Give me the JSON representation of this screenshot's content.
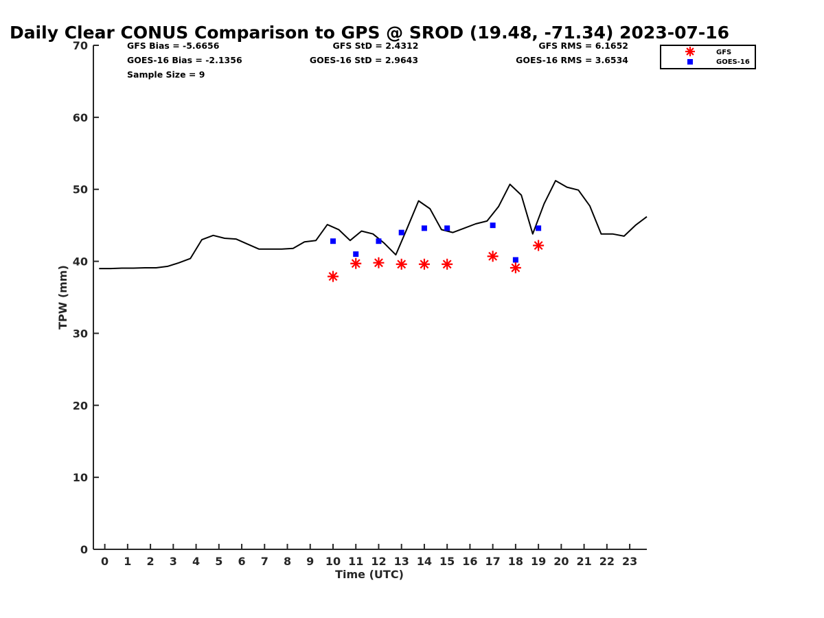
{
  "chart_data": {
    "type": "scatter",
    "title": "Daily Clear CONUS Comparison to GPS @ SROD (19.48, -71.34) 2023-07-16",
    "xlabel": "Time (UTC)",
    "ylabel": "TPW (mm)",
    "xlim": [
      -0.5,
      23.75
    ],
    "ylim": [
      0,
      70
    ],
    "xticks": [
      0,
      1,
      2,
      3,
      4,
      5,
      6,
      7,
      8,
      9,
      10,
      11,
      12,
      13,
      14,
      15,
      16,
      17,
      18,
      19,
      20,
      21,
      22,
      23
    ],
    "yticks": [
      0,
      10,
      20,
      30,
      40,
      50,
      60,
      70
    ],
    "grid": false,
    "legend_position": "top-right",
    "stats": {
      "gfs_bias": "GFS Bias = -5.6656",
      "gfs_std": "GFS StD = 2.4312",
      "gfs_rms": "GFS RMS = 6.1652",
      "goes_bias": "GOES-16 Bias = -2.1356",
      "goes_std": "GOES-16 StD = 2.9643",
      "goes_rms": "GOES-16 RMS = 3.6534",
      "sample_size": "Sample Size = 9"
    },
    "series": [
      {
        "key": "gps",
        "style": "line",
        "color": "#000000",
        "x": [
          -0.25,
          0.25,
          0.75,
          1.25,
          1.75,
          2.25,
          2.75,
          3.25,
          3.75,
          4.25,
          4.75,
          5.25,
          5.75,
          6.25,
          6.75,
          7.25,
          7.75,
          8.25,
          8.75,
          9.25,
          9.75,
          10.25,
          10.75,
          11.25,
          11.75,
          12.25,
          12.75,
          13.25,
          13.75,
          14.25,
          14.75,
          15.25,
          15.75,
          16.25,
          16.75,
          17.25,
          17.75,
          18.25,
          18.75,
          19.25,
          19.75,
          20.25,
          20.75,
          21.25,
          21.75,
          22.25,
          22.75,
          23.25,
          23.75
        ],
        "y": [
          39.0,
          39.0,
          39.05,
          39.05,
          39.1,
          39.1,
          39.3,
          39.8,
          40.4,
          43.0,
          43.6,
          43.2,
          43.1,
          42.4,
          41.7,
          41.7,
          41.7,
          41.8,
          42.7,
          42.9,
          45.1,
          44.4,
          42.9,
          44.2,
          43.8,
          42.5,
          40.9,
          44.6,
          48.4,
          47.3,
          44.4,
          44.0,
          44.6,
          45.2,
          45.6,
          47.6,
          50.7,
          49.2,
          43.8,
          48.0,
          51.2,
          50.3,
          49.9,
          47.7,
          43.8,
          43.8,
          43.5,
          45.0,
          46.2
        ]
      },
      {
        "key": "gfs",
        "name": "GFS",
        "style": "asterisk",
        "color": "#ff0000",
        "x": [
          10,
          11,
          12,
          13,
          14,
          15,
          17,
          18,
          19
        ],
        "y": [
          37.9,
          39.7,
          39.8,
          39.6,
          39.6,
          39.6,
          40.7,
          39.1,
          42.2
        ]
      },
      {
        "key": "goes",
        "name": "GOES-16",
        "style": "square",
        "color": "#0000ff",
        "x": [
          10,
          11,
          12,
          13,
          14,
          15,
          17,
          18,
          19
        ],
        "y": [
          42.8,
          41.0,
          42.8,
          44.0,
          44.6,
          44.6,
          45.0,
          40.2,
          44.6
        ]
      }
    ]
  }
}
